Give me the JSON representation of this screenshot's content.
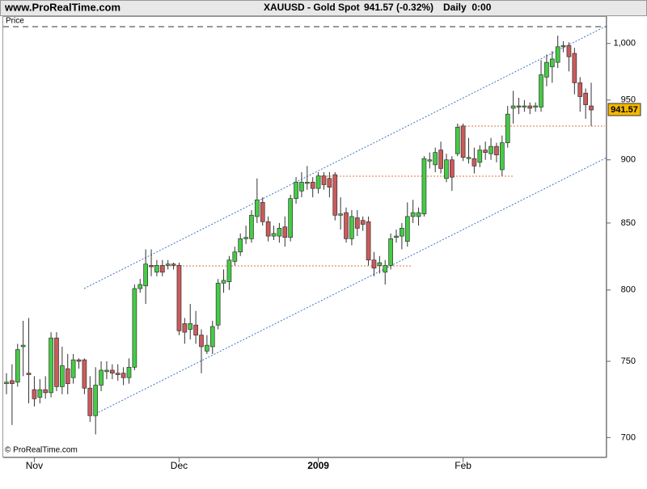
{
  "header": {
    "site": "www.ProRealTime.com",
    "title": "XAUUSD - Gold Spot",
    "change": "941.57 (-0.32%)",
    "timeframe": "Daily  0:00"
  },
  "footer": {
    "copyright": "© ProRealTime.com"
  },
  "chart_data": {
    "type": "candlestick",
    "axis_label": "Price",
    "price_tag": "941.57",
    "log_scale": true,
    "up_color": "#44cc44",
    "down_color": "#cc5a5a",
    "ylim": [
      688,
      1016
    ],
    "yticks": [
      700,
      750,
      800,
      850,
      900,
      950,
      {
        "value": 1000,
        "label": "1,000"
      }
    ],
    "categories": [
      null,
      null,
      null,
      null,
      null,
      "Nov",
      null,
      null,
      null,
      null,
      null,
      null,
      null,
      null,
      null,
      null,
      null,
      null,
      null,
      null,
      null,
      null,
      null,
      null,
      null,
      null,
      null,
      null,
      null,
      null,
      null,
      "Dec",
      null,
      null,
      null,
      null,
      null,
      null,
      null,
      null,
      null,
      null,
      null,
      null,
      null,
      null,
      null,
      null,
      null,
      null,
      null,
      null,
      null,
      null,
      null,
      null,
      "2009",
      null,
      null,
      null,
      null,
      null,
      null,
      null,
      null,
      null,
      null,
      null,
      null,
      null,
      null,
      null,
      null,
      null,
      null,
      null,
      null,
      null,
      null,
      null,
      null,
      null,
      "Feb",
      null,
      null,
      null,
      null,
      null,
      null,
      null,
      null,
      null,
      null,
      null,
      null,
      null,
      null,
      null,
      null,
      null,
      null,
      null,
      null,
      null,
      null,
      null
    ],
    "open": [
      735,
      737,
      736,
      760,
      742,
      731,
      726,
      731,
      729,
      766,
      733,
      745,
      739,
      751,
      751,
      732,
      714,
      734,
      743,
      744,
      742,
      742,
      739,
      746,
      801,
      803,
      818,
      813,
      818,
      818,
      819,
      818,
      776,
      772,
      775,
      768,
      757,
      760,
      775,
      805,
      806,
      821,
      828,
      838,
      838,
      855,
      866,
      851,
      840,
      840,
      847,
      839,
      869,
      875,
      881,
      882,
      877,
      887,
      885,
      888,
      856,
      858,
      838,
      854,
      852,
      851,
      822,
      818,
      813,
      818,
      839,
      840,
      836,
      855,
      855,
      857,
      899,
      896,
      908,
      885,
      900,
      905,
      928,
      901,
      901,
      898,
      908,
      905,
      911,
      892,
      914,
      943,
      945,
      944,
      945,
      944,
      944,
      970,
      979,
      983,
      997,
      998,
      991,
      965,
      956,
      945
    ],
    "high": [
      742,
      748,
      762,
      778,
      780,
      740,
      738,
      740,
      770,
      770,
      760,
      755,
      755,
      752,
      752,
      740,
      746,
      750,
      750,
      748,
      748,
      746,
      752,
      804,
      808,
      830,
      830,
      822,
      822,
      822,
      820,
      820,
      780,
      790,
      785,
      772,
      768,
      778,
      808,
      815,
      825,
      832,
      842,
      848,
      860,
      885,
      870,
      855,
      848,
      850,
      855,
      872,
      886,
      890,
      895,
      886,
      890,
      890,
      890,
      890,
      870,
      862,
      860,
      860,
      855,
      855,
      828,
      825,
      822,
      842,
      845,
      850,
      866,
      868,
      862,
      903,
      906,
      910,
      915,
      905,
      903,
      930,
      930,
      918,
      910,
      912,
      915,
      918,
      914,
      920,
      945,
      958,
      952,
      950,
      948,
      948,
      985,
      990,
      993,
      1007,
      1002,
      1001,
      996,
      970,
      960,
      965
    ],
    "low": [
      728,
      708,
      733,
      740,
      722,
      720,
      722,
      725,
      726,
      730,
      728,
      728,
      735,
      745,
      728,
      710,
      702,
      730,
      738,
      738,
      737,
      734,
      735,
      744,
      798,
      790,
      810,
      810,
      810,
      815,
      815,
      768,
      762,
      765,
      762,
      742,
      755,
      755,
      772,
      798,
      800,
      818,
      825,
      834,
      835,
      850,
      848,
      836,
      837,
      835,
      832,
      836,
      865,
      870,
      876,
      870,
      873,
      876,
      870,
      852,
      845,
      835,
      833,
      840,
      844,
      818,
      810,
      812,
      804,
      815,
      835,
      830,
      832,
      850,
      848,
      855,
      893,
      890,
      889,
      882,
      875,
      903,
      899,
      897,
      889,
      894,
      900,
      900,
      898,
      887,
      910,
      930,
      938,
      940,
      938,
      940,
      940,
      962,
      965,
      978,
      992,
      975,
      955,
      940,
      934,
      928
    ],
    "close": [
      736,
      735,
      758,
      761,
      741,
      725,
      731,
      729,
      766,
      733,
      747,
      735,
      751,
      750,
      732,
      714,
      734,
      744,
      744,
      742,
      741,
      739,
      746,
      801,
      804,
      819,
      817,
      818,
      813,
      819,
      818,
      771,
      770,
      776,
      768,
      760,
      761,
      774,
      805,
      807,
      822,
      828,
      838,
      839,
      856,
      868,
      851,
      840,
      842,
      846,
      839,
      869,
      882,
      882,
      882,
      877,
      887,
      880,
      878,
      856,
      857,
      838,
      855,
      846,
      849,
      822,
      816,
      820,
      818,
      838,
      840,
      846,
      855,
      858,
      858,
      901,
      900,
      906,
      893,
      900,
      886,
      927,
      902,
      902,
      895,
      908,
      906,
      911,
      904,
      914,
      938,
      945,
      944,
      945,
      943,
      945,
      972,
      983,
      986,
      997,
      998,
      988,
      965,
      953,
      946,
      941.57
    ]
  }
}
